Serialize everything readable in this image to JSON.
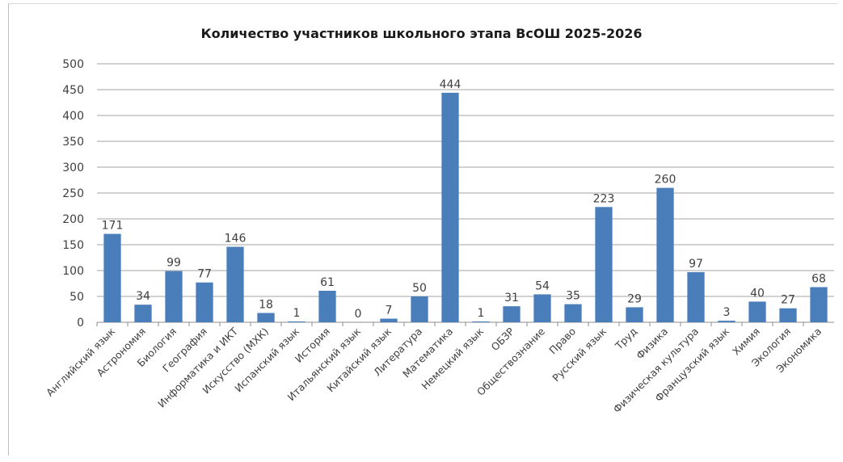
{
  "chart_data": {
    "type": "bar",
    "title": "Количество участников школьного этапа ВсОШ 2025-2026",
    "categories": [
      "Английский язык",
      "Астрономия",
      "Биология",
      "География",
      "Информатика и ИКТ",
      "Искусство (МХК)",
      "Испанский язык",
      "История",
      "Итальянский язык",
      "Китайский язык",
      "Литература",
      "Математика",
      "Немецкий язык",
      "ОБЗР",
      "Обществознание",
      "Право",
      "Русский язык",
      "Труд",
      "Физика",
      "Физическая культура",
      "Французский язык",
      "Химия",
      "Экология",
      "Экономика"
    ],
    "values": [
      171,
      34,
      99,
      77,
      146,
      18,
      1,
      61,
      0,
      7,
      50,
      444,
      1,
      31,
      54,
      35,
      223,
      29,
      260,
      97,
      3,
      40,
      27,
      68
    ],
    "xlabel": "",
    "ylabel": "",
    "ylim": [
      0,
      500
    ],
    "yticks": [
      0,
      50,
      100,
      150,
      200,
      250,
      300,
      350,
      400,
      450,
      500
    ],
    "grid": true,
    "legend": "none",
    "bar_color": "#4a7ebb",
    "grid_color": "#a6a6a6",
    "text_color": "#404040"
  }
}
